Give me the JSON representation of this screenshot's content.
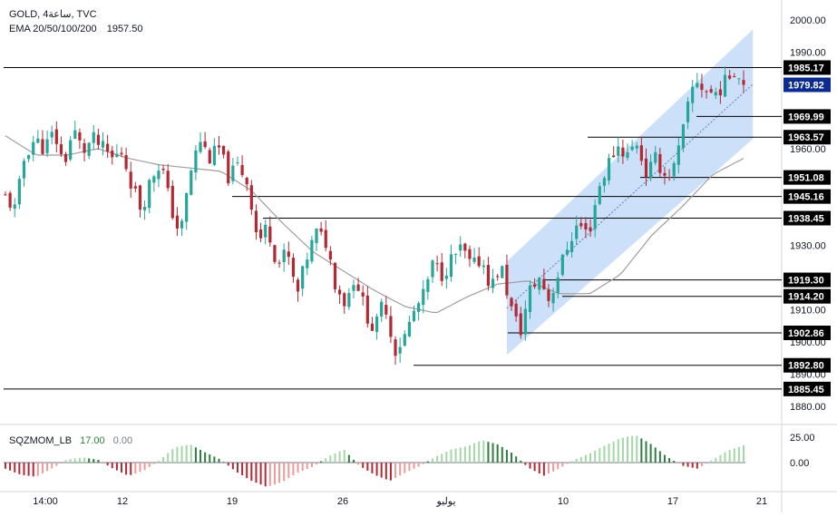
{
  "colors": {
    "up": "#26a69a",
    "down": "#b22833",
    "ema": "#9e9e9e",
    "channel": "#bbd7f7",
    "hline": "#000000",
    "price_label_bg": "#000000",
    "current_label_bg": "#0d2b8f",
    "mom_up_strong": "#2f7d3f",
    "mom_up_weak": "#a5d6a7",
    "mom_down_strong": "#b22833",
    "mom_down_weak": "#ef9a9a"
  },
  "chart_data": {
    "type": "candlestick",
    "symbol_line": "GOLD, 4ساعة, TVC",
    "ema_line": {
      "label": "EMA 20/50/100/200",
      "value": "1957.50"
    },
    "ylim": [
      1875,
      2005
    ],
    "y_ticks": [
      "2000.00",
      "1990.00",
      "1960.00",
      "1930.00",
      "1910.00",
      "1900.00",
      "1890.00",
      "1880.00"
    ],
    "x_ticks": [
      "14:00",
      "12",
      "19",
      "26",
      "يوليو",
      "10",
      "17",
      "21"
    ],
    "price_levels": [
      {
        "value": "1985.17",
        "kind": "level"
      },
      {
        "value": "1979.82",
        "kind": "current"
      },
      {
        "value": "1969.99",
        "kind": "level"
      },
      {
        "value": "1963.57",
        "kind": "level"
      },
      {
        "value": "1951.08",
        "kind": "level"
      },
      {
        "value": "1945.16",
        "kind": "level"
      },
      {
        "value": "1938.45",
        "kind": "level"
      },
      {
        "value": "1919.30",
        "kind": "level"
      },
      {
        "value": "1914.20",
        "kind": "level"
      },
      {
        "value": "1902.86",
        "kind": "level"
      },
      {
        "value": "1892.80",
        "kind": "level"
      },
      {
        "value": "1885.45",
        "kind": "level"
      }
    ],
    "price_path": [
      1945,
      1941,
      1958,
      1963,
      1960,
      1965,
      1955,
      1966,
      1959,
      1963,
      1960,
      1957,
      1959,
      1949,
      1941,
      1951,
      1956,
      1942,
      1933,
      1952,
      1963,
      1957,
      1960,
      1951,
      1955,
      1949,
      1931,
      1936,
      1924,
      1928,
      1914,
      1926,
      1934,
      1931,
      1918,
      1912,
      1921,
      1910,
      1903,
      1914,
      1897,
      1901,
      1909,
      1914,
      1924,
      1921,
      1926,
      1929,
      1923,
      1926,
      1917,
      1924,
      1911,
      1903,
      1916,
      1920,
      1913,
      1922,
      1931,
      1937,
      1933,
      1947,
      1955,
      1961,
      1958,
      1962,
      1952,
      1957,
      1951,
      1955,
      1969,
      1982,
      1978,
      1977,
      1980,
      1985,
      1979.82
    ],
    "ema_path": [
      1964,
      1958,
      1958,
      1960,
      1957,
      1955,
      1954,
      1953,
      1947,
      1937,
      1928,
      1922,
      1916,
      1911,
      1909,
      1914,
      1918,
      1919,
      1915,
      1915,
      1921,
      1933,
      1942,
      1952,
      1957
    ],
    "channel": {
      "start_low": 1896,
      "start_high": 1925,
      "end_low": 1963,
      "end_high": 1997
    },
    "squeeze_momentum": {
      "label": "SQZMOM_LB",
      "value": "17.00",
      "zero_value": "0.00",
      "y_ticks": [
        "25.00",
        "0.00"
      ],
      "ylim": [
        -30,
        30
      ],
      "path": [
        -6,
        -12,
        -14,
        -6,
        3,
        5,
        3,
        -6,
        -13,
        -8,
        2,
        15,
        18,
        10,
        3,
        -9,
        -18,
        -24,
        -19,
        -10,
        -4,
        6,
        13,
        -3,
        -12,
        -18,
        -10,
        -3,
        6,
        13,
        16,
        22,
        18,
        9,
        -5,
        -13,
        -6,
        3,
        9,
        17,
        24,
        27,
        18,
        6,
        -3,
        -6,
        3,
        12,
        17
      ]
    }
  }
}
